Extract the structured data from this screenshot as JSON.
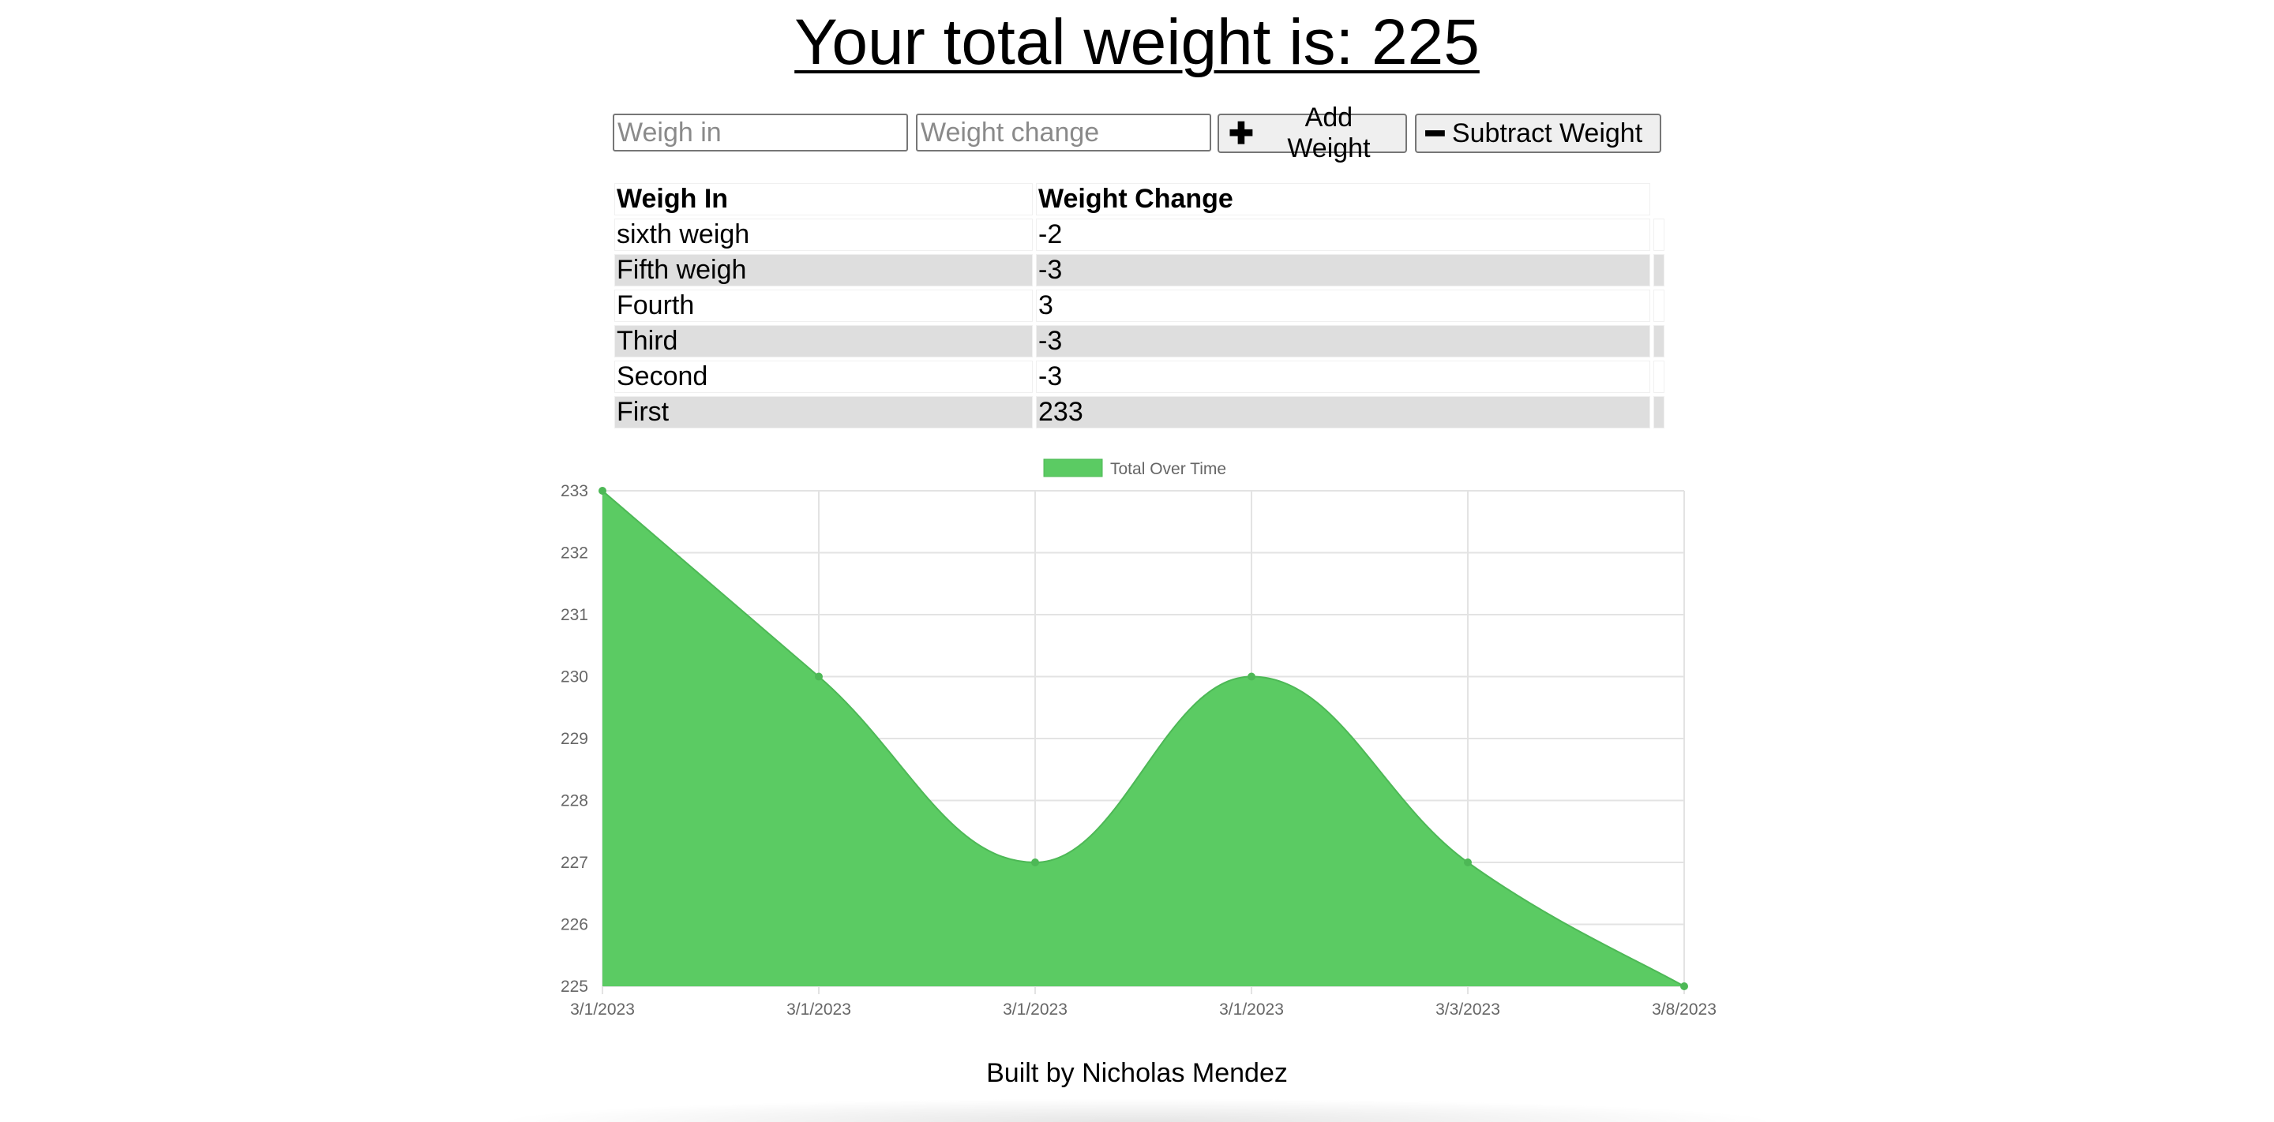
{
  "header": {
    "title": "Your total weight is: 225"
  },
  "form": {
    "weigh_in_placeholder": "Weigh in",
    "weight_change_placeholder": "Weight change",
    "add_icon": "plus-icon",
    "add_label": "Add Weight",
    "subtract_icon": "minus-icon",
    "subtract_label": "Subtract Weight"
  },
  "table": {
    "headers": [
      "Weigh In",
      "Weight Change"
    ],
    "rows": [
      [
        "sixth weigh",
        "-2"
      ],
      [
        "Fifth weigh",
        "-3"
      ],
      [
        "Fourth",
        "3"
      ],
      [
        "Third",
        "-3"
      ],
      [
        "Second",
        "-3"
      ],
      [
        "First",
        "233"
      ]
    ]
  },
  "chart_data": {
    "type": "area",
    "categories": [
      "3/1/2023",
      "3/1/2023",
      "3/1/2023",
      "3/1/2023",
      "3/3/2023",
      "3/8/2023"
    ],
    "series": [
      {
        "name": "Total Over Time",
        "values": [
          233,
          230,
          227,
          230,
          227,
          225
        ],
        "color": "#5bcb63"
      }
    ],
    "y_ticks": [
      233,
      232,
      231,
      230,
      229,
      228,
      227,
      226,
      225
    ],
    "ylim": [
      225,
      233
    ],
    "grid": true,
    "legend_position": "top"
  },
  "footer": {
    "text": "Built by Nicholas Mendez"
  }
}
